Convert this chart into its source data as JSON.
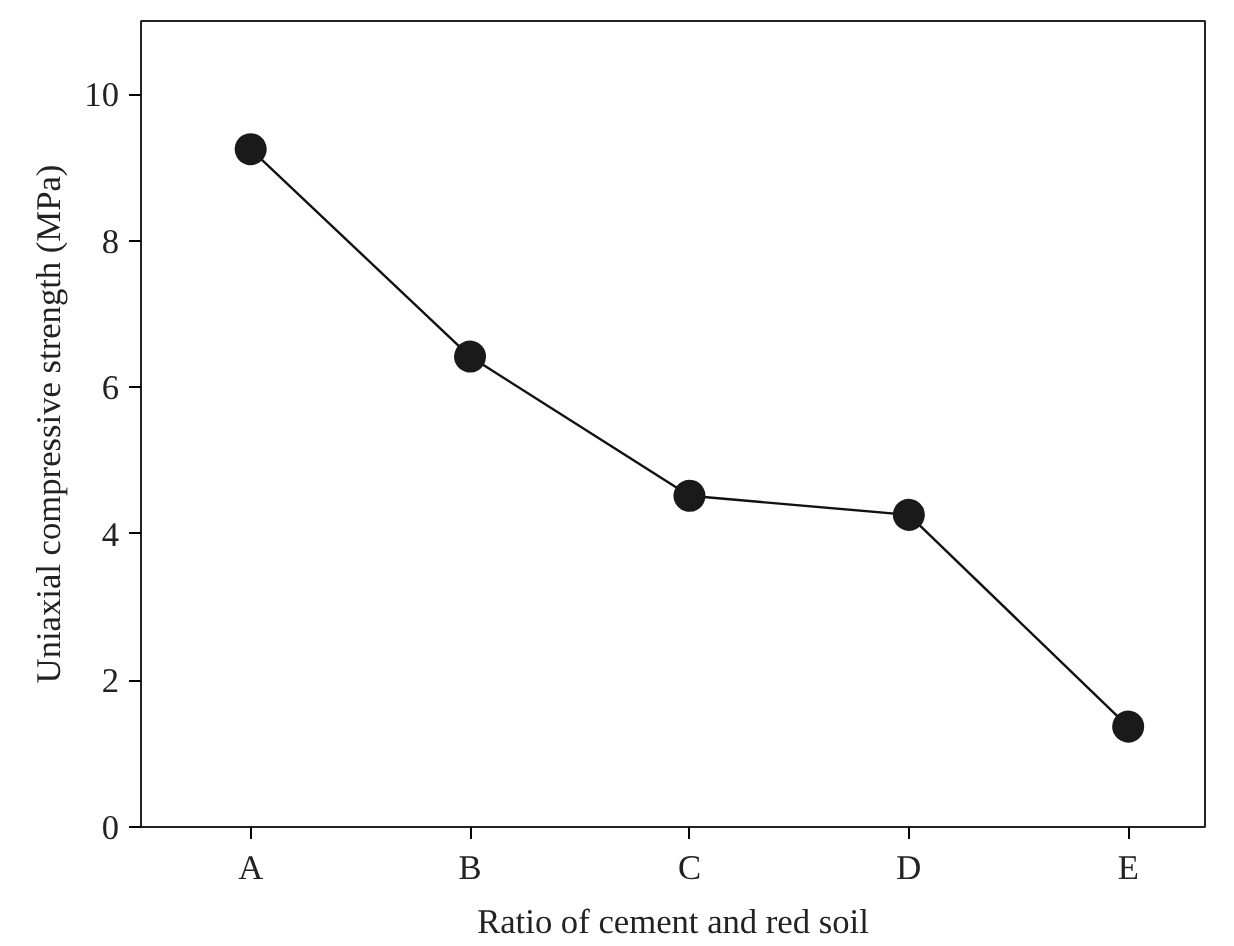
{
  "chart_data": {
    "type": "line",
    "xlabel": "Ratio of cement and red soil",
    "ylabel": "Uniaxial compressive strength (MPa)",
    "categories": [
      "A",
      "B",
      "C",
      "D",
      "E"
    ],
    "series": [
      {
        "color": "#1a1a1a",
        "values": [
          9.25,
          6.42,
          4.52,
          4.26,
          1.37
        ]
      }
    ],
    "ylim": [
      0,
      11
    ],
    "yticks": [
      0,
      2,
      4,
      6,
      8,
      10
    ],
    "grid": false,
    "marker": "circle",
    "line_style": "solid"
  }
}
